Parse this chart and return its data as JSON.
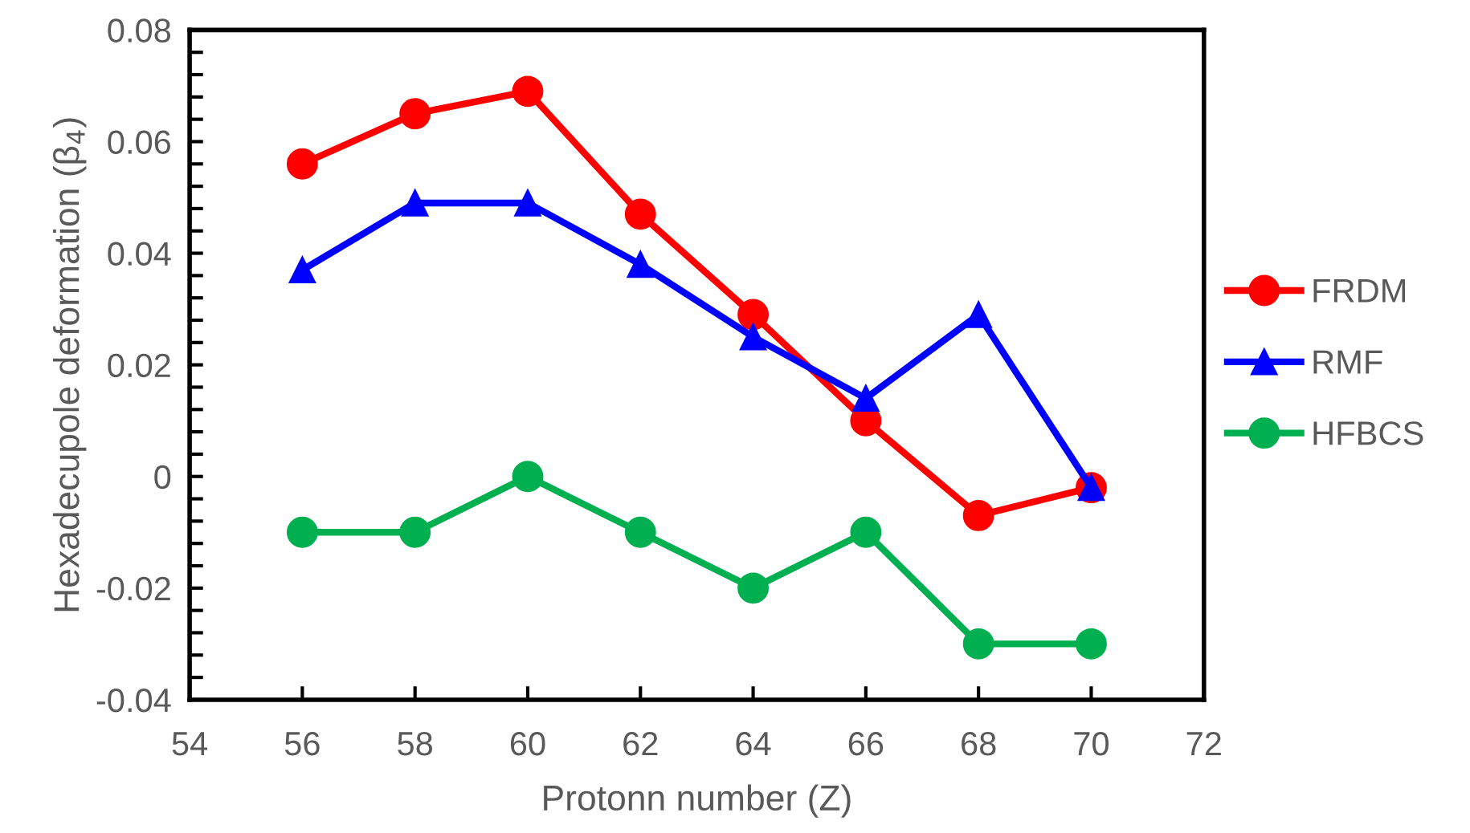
{
  "chart_data": {
    "type": "line",
    "xlabel": "Protonn number (Z)",
    "ylabel": "Hexadecupole deformation (β$_{4}$)",
    "x": [
      56,
      58,
      60,
      62,
      64,
      66,
      68,
      70
    ],
    "series": [
      {
        "name": "FRDM",
        "color": "#ff0000",
        "marker": "circle",
        "values": [
          0.056,
          0.065,
          0.069,
          0.047,
          0.029,
          0.01,
          -0.007,
          -0.002
        ]
      },
      {
        "name": "RMF",
        "color": "#0000ff",
        "marker": "triangle",
        "values": [
          0.037,
          0.049,
          0.049,
          0.038,
          0.025,
          0.014,
          0.029,
          -0.002
        ]
      },
      {
        "name": "HFBCS",
        "color": "#00b050",
        "marker": "circle",
        "values": [
          -0.01,
          -0.01,
          0,
          -0.01,
          -0.02,
          -0.01,
          -0.03,
          -0.03
        ]
      }
    ],
    "xlim": [
      54,
      72
    ],
    "xticks": [
      54,
      56,
      58,
      60,
      62,
      64,
      66,
      68,
      70,
      72
    ],
    "ylim": [
      -0.04,
      0.08
    ],
    "yticks": [
      -0.04,
      {
        "value": -0.036,
        "label": null
      },
      {
        "value": -0.032,
        "label": null
      },
      {
        "value": -0.028,
        "label": null
      },
      {
        "value": -0.024,
        "label": null
      },
      -0.02,
      {
        "value": -0.016,
        "label": null
      },
      {
        "value": -0.012,
        "label": null
      },
      {
        "value": -0.008,
        "label": null
      },
      {
        "value": -0.004,
        "label": null
      },
      0,
      {
        "value": 0.004,
        "label": null
      },
      {
        "value": 0.008,
        "label": null
      },
      {
        "value": 0.012,
        "label": null
      },
      {
        "value": 0.016,
        "label": null
      },
      0.02,
      {
        "value": 0.024,
        "label": null
      },
      {
        "value": 0.028,
        "label": null
      },
      {
        "value": 0.032,
        "label": null
      },
      {
        "value": 0.036,
        "label": null
      },
      0.04,
      {
        "value": 0.044,
        "label": null
      },
      {
        "value": 0.048,
        "label": null
      },
      {
        "value": 0.052,
        "label": null
      },
      {
        "value": 0.056,
        "label": null
      },
      0.06,
      {
        "value": 0.064,
        "label": null
      },
      {
        "value": 0.068,
        "label": null
      },
      {
        "value": 0.072,
        "label": null
      },
      {
        "value": 0.076,
        "label": null
      },
      0.08
    ],
    "grid": false,
    "legend": "right",
    "line_style": "solid"
  }
}
